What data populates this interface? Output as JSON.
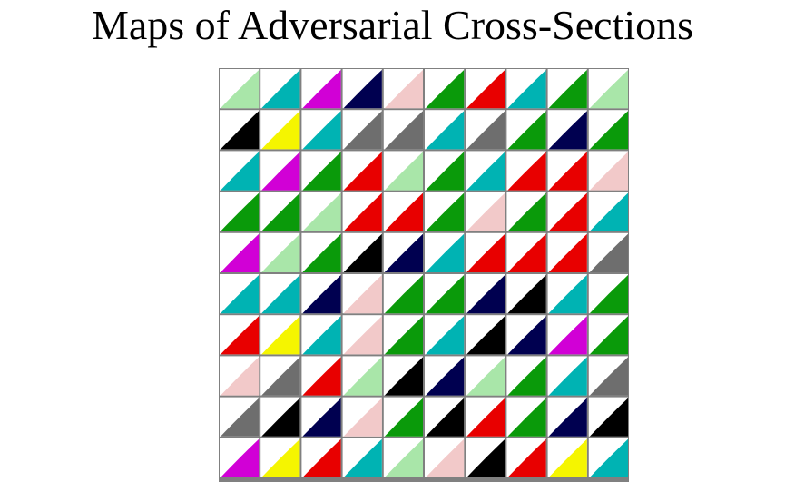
{
  "title": "Maps of Adversarial Cross-Sections",
  "grid": {
    "rows": 10,
    "cols": 10
  },
  "palette": {
    "white": "#ffffff",
    "cyan": "#00b3b3",
    "green": "#0a9a0a",
    "magenta": "#d100d6",
    "navy": "#000050",
    "pink": "#f2c9c9",
    "red": "#e80000",
    "black": "#000000",
    "gray": "#6e6e6e",
    "lightgreen": "#a9e6a9",
    "yellow": "#f5f500",
    "border": "#808080"
  },
  "cells": [
    [
      "lightgreen",
      "cyan",
      "magenta",
      "navy",
      "pink",
      "green",
      "red",
      "cyan",
      "green",
      "lightgreen"
    ],
    [
      "black",
      "yellow",
      "cyan",
      "gray",
      "gray",
      "cyan",
      "gray",
      "green",
      "navy",
      "green"
    ],
    [
      "cyan",
      "magenta",
      "green",
      "red",
      "lightgreen",
      "green",
      "cyan",
      "red",
      "red",
      "pink"
    ],
    [
      "green",
      "green",
      "lightgreen",
      "red",
      "red",
      "green",
      "pink",
      "green",
      "red",
      "cyan"
    ],
    [
      "magenta",
      "lightgreen",
      "green",
      "black",
      "navy",
      "cyan",
      "red",
      "red",
      "red",
      "gray"
    ],
    [
      "cyan",
      "cyan",
      "navy",
      "pink",
      "green",
      "green",
      "navy",
      "black",
      "cyan",
      "green"
    ],
    [
      "red",
      "yellow",
      "cyan",
      "pink",
      "green",
      "cyan",
      "black",
      "navy",
      "magenta",
      "green"
    ],
    [
      "pink",
      "gray",
      "red",
      "lightgreen",
      "black",
      "navy",
      "lightgreen",
      "green",
      "cyan",
      "gray"
    ],
    [
      "gray",
      "black",
      "navy",
      "pink",
      "green",
      "black",
      "red",
      "green",
      "navy",
      "black"
    ],
    [
      "magenta",
      "yellow",
      "red",
      "cyan",
      "lightgreen",
      "pink",
      "black",
      "red",
      "yellow",
      "cyan"
    ]
  ]
}
